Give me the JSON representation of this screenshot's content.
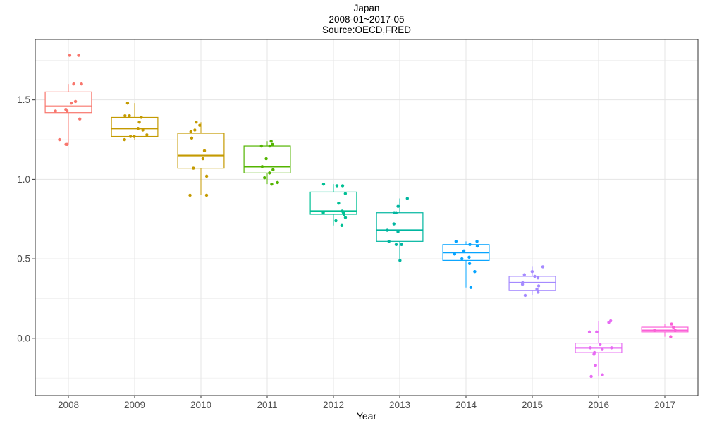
{
  "chart_data": {
    "type": "boxplot",
    "title": "Japan",
    "subtitle_lines": [
      "2008-01~2017-05",
      "Source:OECD,FRED"
    ],
    "xlabel": "Year",
    "ylabel": "",
    "ylim": [
      -0.36,
      1.88
    ],
    "yticks": [
      0.0,
      0.5,
      1.0,
      1.5
    ],
    "ytick_labels": [
      "0.0",
      "0.5",
      "1.0",
      "1.5"
    ],
    "grid": true,
    "legend": "none",
    "categories": [
      "2008",
      "2009",
      "2010",
      "2011",
      "2012",
      "2013",
      "2014",
      "2015",
      "2016",
      "2017"
    ],
    "colors": [
      "#F8766D",
      "#C49A00",
      "#C49A00",
      "#53B400",
      "#00C094",
      "#00B6A0",
      "#06A4FF",
      "#A58AFF",
      "#E76BF3",
      "#FB61D7"
    ],
    "boxes": [
      {
        "category": "2008",
        "color": "#F8766D",
        "q1": 1.42,
        "median": 1.46,
        "q3": 1.55,
        "whisker_low": 1.22,
        "whisker_high": 1.6,
        "points": [
          1.78,
          1.78,
          1.6,
          1.6,
          1.49,
          1.48,
          1.44,
          1.43,
          1.43,
          1.38,
          1.25,
          1.22,
          1.22
        ]
      },
      {
        "category": "2009",
        "color": "#C49A00",
        "q1": 1.27,
        "median": 1.32,
        "q3": 1.39,
        "whisker_low": 1.25,
        "whisker_high": 1.48,
        "points": [
          1.48,
          1.4,
          1.4,
          1.39,
          1.36,
          1.32,
          1.31,
          1.28,
          1.27,
          1.27,
          1.25
        ]
      },
      {
        "category": "2010",
        "color": "#C49A00",
        "q1": 1.07,
        "median": 1.15,
        "q3": 1.29,
        "whisker_low": 0.9,
        "whisker_high": 1.36,
        "points": [
          1.36,
          1.34,
          1.31,
          1.3,
          1.26,
          1.18,
          1.13,
          1.07,
          1.02,
          0.9,
          0.9
        ]
      },
      {
        "category": "2011",
        "color": "#53B400",
        "q1": 1.04,
        "median": 1.08,
        "q3": 1.21,
        "whisker_low": 0.97,
        "whisker_high": 1.24,
        "points": [
          1.24,
          1.22,
          1.21,
          1.21,
          1.13,
          1.08,
          1.06,
          1.04,
          1.01,
          0.98,
          0.97
        ]
      },
      {
        "category": "2012",
        "color": "#00C094",
        "q1": 0.78,
        "median": 0.8,
        "q3": 0.92,
        "whisker_low": 0.71,
        "whisker_high": 0.97,
        "points": [
          0.97,
          0.96,
          0.96,
          0.91,
          0.85,
          0.8,
          0.79,
          0.79,
          0.78,
          0.76,
          0.74,
          0.71
        ]
      },
      {
        "category": "2013",
        "color": "#00B6A0",
        "q1": 0.61,
        "median": 0.68,
        "q3": 0.79,
        "whisker_low": 0.49,
        "whisker_high": 0.88,
        "points": [
          0.88,
          0.83,
          0.79,
          0.79,
          0.72,
          0.68,
          0.67,
          0.61,
          0.59,
          0.59,
          0.49
        ]
      },
      {
        "category": "2014",
        "color": "#06A4FF",
        "q1": 0.49,
        "median": 0.54,
        "q3": 0.59,
        "whisker_low": 0.32,
        "whisker_high": 0.61,
        "points": [
          0.61,
          0.61,
          0.59,
          0.58,
          0.55,
          0.53,
          0.51,
          0.5,
          0.47,
          0.42,
          0.32
        ]
      },
      {
        "category": "2015",
        "color": "#A58AFF",
        "q1": 0.3,
        "median": 0.35,
        "q3": 0.39,
        "whisker_low": 0.27,
        "whisker_high": 0.45,
        "points": [
          0.45,
          0.42,
          0.4,
          0.39,
          0.38,
          0.35,
          0.34,
          0.33,
          0.31,
          0.29,
          0.27
        ]
      },
      {
        "category": "2016",
        "color": "#E76BF3",
        "q1": -0.09,
        "median": -0.06,
        "q3": -0.03,
        "whisker_low": -0.24,
        "whisker_high": 0.11,
        "points": [
          0.11,
          0.1,
          0.04,
          0.04,
          -0.04,
          -0.06,
          -0.06,
          -0.07,
          -0.09,
          -0.1,
          -0.17,
          -0.23,
          -0.24
        ]
      },
      {
        "category": "2017",
        "color": "#FB61D7",
        "q1": 0.04,
        "median": 0.05,
        "q3": 0.07,
        "whisker_low": 0.01,
        "whisker_high": 0.09,
        "points": [
          0.09,
          0.07,
          0.05,
          0.05,
          0.01
        ]
      }
    ]
  }
}
